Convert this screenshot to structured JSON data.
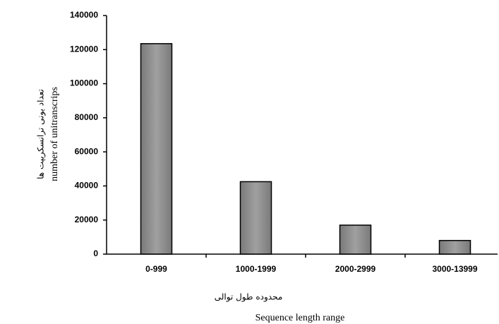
{
  "chart_data": {
    "type": "bar",
    "categories": [
      "0-999",
      "1000-1999",
      "2000-2999",
      "3000-13999"
    ],
    "values": [
      123500,
      42500,
      17000,
      8000
    ],
    "color": "#a0a0a0",
    "ylim": [
      0,
      140000
    ],
    "yticks": [
      0,
      20000,
      40000,
      60000,
      80000,
      100000,
      120000,
      140000
    ],
    "xlabel": [
      "محدوده طول توالی",
      "Sequence length range"
    ],
    "ylabel": [
      "تعداد یونی ترانسکریپت ها",
      "number of unitranscrips"
    ],
    "grid": false
  }
}
